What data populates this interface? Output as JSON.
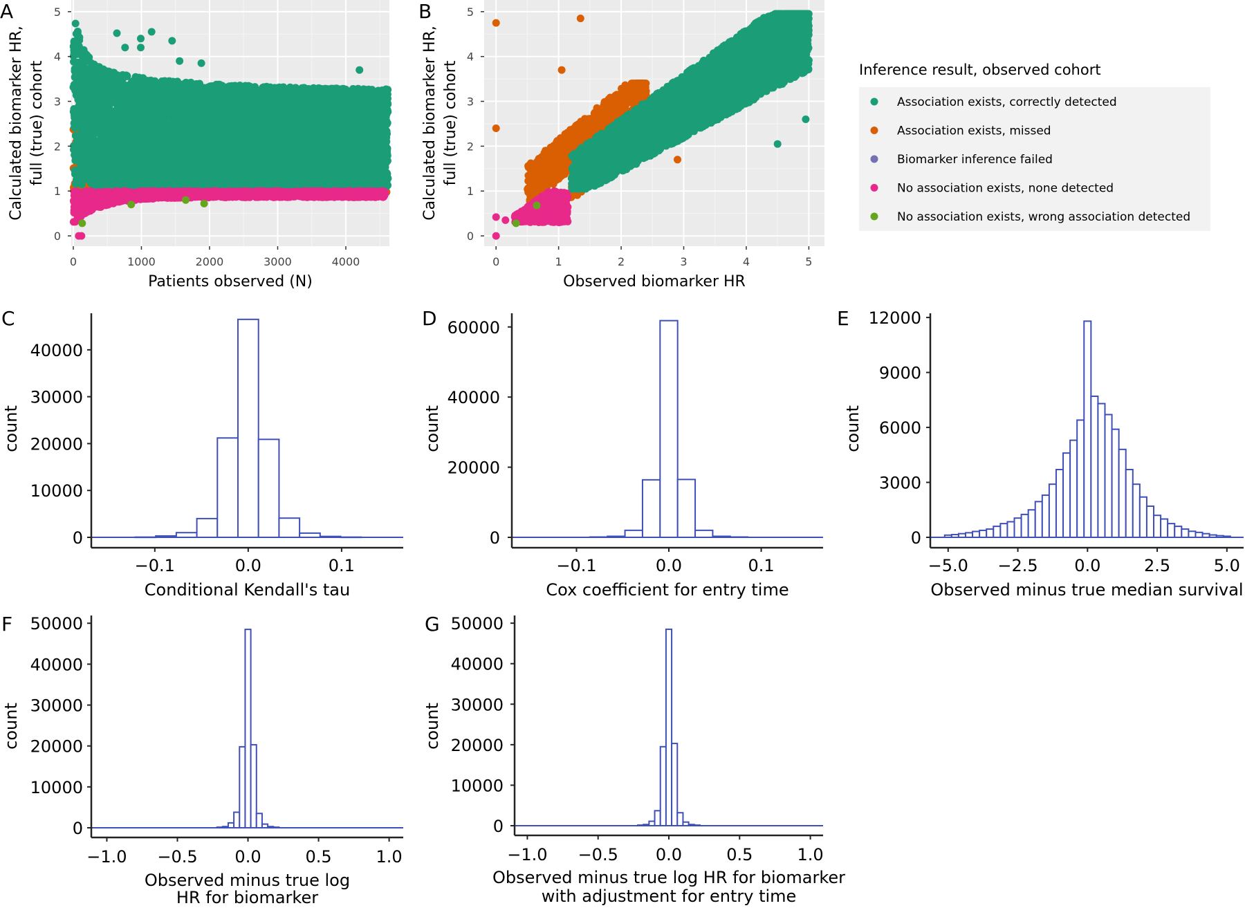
{
  "chart_data": [
    {
      "id": "A",
      "type": "scatter",
      "panel_label": "A",
      "xlabel": "Patients observed (N)",
      "ylabel": [
        "Calculated biomarker HR,",
        "full (true) cohort"
      ],
      "xticks": [
        0,
        1000,
        2000,
        3000,
        4000
      ],
      "xtick_labels": [
        "0",
        "1000",
        "2000",
        "3000",
        "4000"
      ],
      "yticks": [
        0,
        1,
        2,
        3,
        4,
        5
      ],
      "ytick_labels": [
        "0",
        "1",
        "2",
        "3",
        "4",
        "5"
      ],
      "xlim": [
        -30,
        4640
      ],
      "ylim": [
        -0.23,
        5.26
      ],
      "grid": true,
      "description_series": [
        "Association exists, correctly detected",
        "Association exists, missed",
        "No association exists, none detected",
        "No association exists, wrong association detected"
      ]
    },
    {
      "id": "B",
      "type": "scatter",
      "panel_label": "B",
      "xlabel": "Observed biomarker HR",
      "ylabel": [
        "Calculated biomarker HR,",
        "full (true) cohort"
      ],
      "xticks": [
        0,
        1,
        2,
        3,
        4,
        5
      ],
      "xtick_labels": [
        "0",
        "1",
        "2",
        "3",
        "4",
        "5"
      ],
      "yticks": [
        0,
        1,
        2,
        3,
        4,
        5
      ],
      "ytick_labels": [
        "0",
        "1",
        "2",
        "3",
        "4",
        "5"
      ],
      "xlim": [
        -0.19,
        5.25
      ],
      "ylim": [
        -0.23,
        5.26
      ],
      "grid": true
    },
    {
      "id": "C",
      "type": "bar",
      "panel_label": "C",
      "xlabel": [
        "Conditional Kendall's tau"
      ],
      "ylabel": "count",
      "bin_width": 0.022,
      "bin_centers": [
        -0.11,
        -0.088,
        -0.066,
        -0.044,
        -0.022,
        0,
        0.022,
        0.044,
        0.066,
        0.088,
        0.11
      ],
      "values": [
        50,
        300,
        1000,
        4000,
        21200,
        46500,
        20900,
        4100,
        900,
        200,
        50
      ],
      "xticks": [
        -0.1,
        0,
        0.1
      ],
      "xtick_labels": [
        "−0.1",
        "0.0",
        "0.1"
      ],
      "yticks": [
        0,
        10000,
        20000,
        30000,
        40000
      ],
      "ytick_labels": [
        "0",
        "10000",
        "20000",
        "30000",
        "40000"
      ],
      "xlim": [
        -0.168,
        0.166
      ],
      "ylim": [
        0,
        47800
      ]
    },
    {
      "id": "D",
      "type": "bar",
      "panel_label": "D",
      "xlabel": [
        "Cox coefficient for entry time"
      ],
      "ylabel": "count",
      "bin_width": 0.019,
      "bin_centers": [
        -0.076,
        -0.057,
        -0.038,
        -0.019,
        0,
        0.019,
        0.038,
        0.057,
        0.076
      ],
      "values": [
        100,
        300,
        2000,
        16400,
        61800,
        16500,
        2000,
        300,
        100
      ],
      "xticks": [
        -0.1,
        0,
        0.1
      ],
      "xtick_labels": [
        "−0.1",
        "0.0",
        "0.1"
      ],
      "yticks": [
        0,
        20000,
        40000,
        60000
      ],
      "ytick_labels": [
        "0",
        "20000",
        "40000",
        "60000"
      ],
      "xlim": [
        -0.17,
        0.167
      ],
      "ylim": [
        0,
        63900
      ]
    },
    {
      "id": "E",
      "type": "bar",
      "panel_label": "E",
      "xlabel": [
        "Observed minus true median survival"
      ],
      "ylabel": "count",
      "bin_width": 0.25,
      "bin_centers": [
        -5.0,
        -4.75,
        -4.5,
        -4.25,
        -4.0,
        -3.75,
        -3.5,
        -3.25,
        -3.0,
        -2.75,
        -2.5,
        -2.25,
        -2.0,
        -1.75,
        -1.5,
        -1.25,
        -1.0,
        -0.75,
        -0.5,
        -0.25,
        0,
        0.25,
        0.5,
        0.75,
        1.0,
        1.25,
        1.5,
        1.75,
        2.0,
        2.25,
        2.5,
        2.75,
        3.0,
        3.25,
        3.5,
        3.75,
        4.0,
        4.25,
        4.5,
        4.75,
        5.0
      ],
      "values": [
        120,
        150,
        200,
        250,
        320,
        380,
        450,
        600,
        750,
        850,
        1050,
        1250,
        1500,
        1950,
        2300,
        2900,
        3700,
        4600,
        5300,
        6400,
        11800,
        7700,
        7300,
        6700,
        5900,
        4800,
        3700,
        2900,
        2200,
        1700,
        1200,
        1000,
        750,
        600,
        450,
        330,
        270,
        200,
        130,
        90,
        60
      ],
      "xticks": [
        -5,
        -2.5,
        0,
        2.5,
        5
      ],
      "xtick_labels": [
        "−5.0",
        "−2.5",
        "0.0",
        "2.5",
        "5.0"
      ],
      "yticks": [
        0,
        3000,
        6000,
        9000,
        12000
      ],
      "ytick_labels": [
        "0",
        "3000",
        "6000",
        "9000",
        "12000"
      ],
      "xlim": [
        -5.64,
        5.6
      ],
      "ylim": [
        0,
        12230
      ]
    },
    {
      "id": "F",
      "type": "bar",
      "panel_label": "F",
      "xlabel": [
        "Observed minus true log",
        "HR for biomarker"
      ],
      "ylabel": "count",
      "bin_width": 0.04,
      "bin_centers": [
        -0.2,
        -0.16,
        -0.12,
        -0.08,
        -0.04,
        0,
        0.04,
        0.08,
        0.12,
        0.16,
        0.2
      ],
      "values": [
        150,
        300,
        1200,
        3800,
        19800,
        48500,
        20300,
        3500,
        900,
        300,
        150
      ],
      "xticks": [
        -1,
        -0.5,
        0,
        0.5,
        1
      ],
      "xtick_labels": [
        "−1.0",
        "−0.5",
        "0.0",
        "0.5",
        "1.0"
      ],
      "yticks": [
        0,
        10000,
        20000,
        30000,
        40000,
        50000
      ],
      "ytick_labels": [
        "0",
        "10000",
        "20000",
        "30000",
        "40000",
        "50000"
      ],
      "xlim": [
        -1.11,
        1.1
      ],
      "ylim": [
        0,
        51900
      ]
    },
    {
      "id": "G",
      "type": "bar",
      "panel_label": "G",
      "xlabel": [
        "Observed minus true log HR for biomarker",
        "with adjustment for entry time"
      ],
      "ylabel": "count",
      "bin_width": 0.04,
      "bin_centers": [
        -0.2,
        -0.16,
        -0.12,
        -0.08,
        -0.04,
        0,
        0.04,
        0.08,
        0.12,
        0.16,
        0.2
      ],
      "values": [
        150,
        300,
        1100,
        3700,
        19500,
        48500,
        20300,
        3200,
        900,
        300,
        150
      ],
      "xticks": [
        -1,
        -0.5,
        0,
        0.5,
        1
      ],
      "xtick_labels": [
        "−1.0",
        "−0.5",
        "0.0",
        "0.5",
        "1.0"
      ],
      "yticks": [
        0,
        10000,
        20000,
        30000,
        40000,
        50000
      ],
      "ytick_labels": [
        "0",
        "10000",
        "20000",
        "30000",
        "40000",
        "50000"
      ],
      "xlim": [
        -1.09,
        1.09
      ],
      "ylim": [
        0,
        51900
      ]
    }
  ],
  "legend": {
    "title": "Inference result, observed cohort",
    "placement": "right",
    "items": [
      {
        "label": "Association exists, correctly detected",
        "color": "#1b9e77"
      },
      {
        "label": "Association exists, missed",
        "color": "#d95f02"
      },
      {
        "label": "Biomarker inference failed",
        "color": "#7570b3"
      },
      {
        "label": "No association exists, none detected",
        "color": "#e7298a"
      },
      {
        "label": "No association exists, wrong association detected",
        "color": "#66a61e"
      }
    ]
  },
  "colors": {
    "histogram_line": "#3f4fb8",
    "panel_bg": "#ebebeb",
    "grid": "#ffffff"
  }
}
